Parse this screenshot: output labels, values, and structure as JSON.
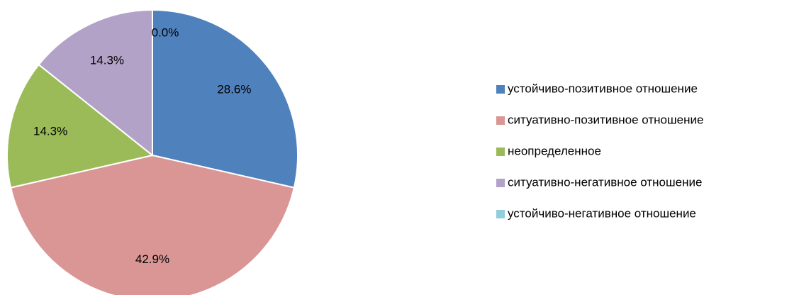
{
  "chart_data": {
    "type": "pie",
    "categories": [
      "устойчиво-позитивное отношение",
      "ситуативно-позитивное отношение",
      "неопределенное",
      "ситуативно-негативное отношение",
      "устойчиво-негативное отношение"
    ],
    "values": [
      28.6,
      42.9,
      14.3,
      14.3,
      0.0
    ],
    "value_labels": [
      "28.6%",
      "42.9%",
      "14.3%",
      "14.3%",
      "0.0%"
    ],
    "colors": [
      "#4f81bd",
      "#d99694",
      "#9bbb59",
      "#b3a2c7",
      "#93cddd"
    ],
    "legend": "right"
  }
}
